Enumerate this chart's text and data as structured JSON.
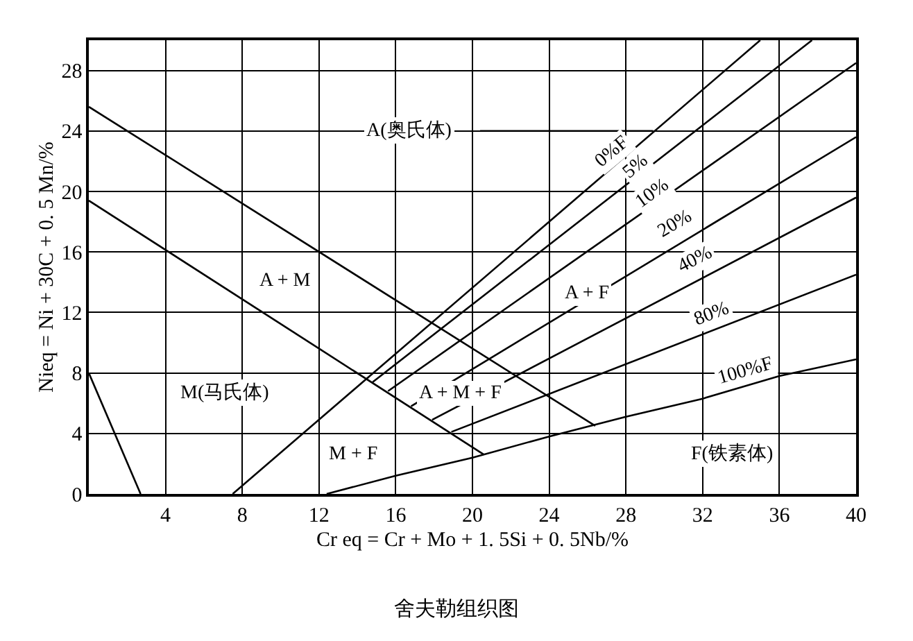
{
  "chart_data": {
    "type": "line",
    "title": "舍夫勒组织图",
    "xlabel": "Cr eq = Cr + Mo + 1. 5Si + 0. 5Nb/%",
    "ylabel": "Nieq = Ni + 30C + 0. 5 Mn/%",
    "xlim": [
      0,
      40
    ],
    "xticks": [
      4,
      8,
      12,
      16,
      20,
      24,
      28,
      32,
      36,
      40
    ],
    "ylim": [
      0,
      30
    ],
    "yticks": [
      0,
      4,
      8,
      12,
      16,
      20,
      24,
      28
    ],
    "grid": true,
    "marker": "none",
    "line_style": "solid",
    "series": [
      {
        "color": "#000000",
        "x": [
          0,
          26.4
        ],
        "values": [
          25.6,
          4.5
        ]
      },
      {
        "color": "#000000",
        "x": [
          0,
          20.6
        ],
        "values": [
          19.4,
          2.6
        ]
      },
      {
        "color": "#000000",
        "x": [
          0,
          2.7
        ],
        "values": [
          8.0,
          0
        ]
      },
      {
        "color": "#000000",
        "x": [
          7.5,
          35.0
        ],
        "values": [
          0,
          30
        ]
      },
      {
        "color": "#000000",
        "x": [
          14.8,
          37.7
        ],
        "values": [
          7.4,
          30
        ]
      },
      {
        "color": "#000000",
        "x": [
          15.6,
          40
        ],
        "values": [
          6.8,
          28.5
        ]
      },
      {
        "color": "#000000",
        "x": [
          16.8,
          40
        ],
        "values": [
          5.8,
          23.6
        ]
      },
      {
        "color": "#000000",
        "x": [
          17.9,
          40
        ],
        "values": [
          4.9,
          19.6
        ]
      },
      {
        "color": "#000000",
        "x": [
          18.9,
          40
        ],
        "values": [
          4.1,
          14.5
        ]
      },
      {
        "color": "#000000",
        "x": [
          12.4,
          16,
          20,
          24,
          28,
          32,
          36,
          40
        ],
        "values": [
          0,
          1.2,
          2.4,
          3.8,
          5.1,
          6.3,
          7.8,
          8.9
        ]
      },
      {
        "color": "#000000",
        "x": [
          20.4,
          29.4
        ],
        "values": [
          24,
          24
        ]
      }
    ],
    "annotations": [
      "A(奥氏体)",
      "A + M",
      "M(马氏体)",
      "M + F",
      "A + M + F",
      "A + F",
      "F(铁素体)",
      {
        "text": "0%F",
        "x": 27.3,
        "y": 22.6
      },
      {
        "text": "5%",
        "x": 28.5,
        "y": 21.6
      },
      {
        "text": "10%",
        "x": 29.4,
        "y": 19.9
      },
      {
        "text": "20%",
        "x": 30.6,
        "y": 17.8
      },
      {
        "text": "40%",
        "x": 31.6,
        "y": 15.5
      },
      {
        "text": "80%",
        "x": 32.5,
        "y": 11.9
      },
      "100%F"
    ]
  }
}
